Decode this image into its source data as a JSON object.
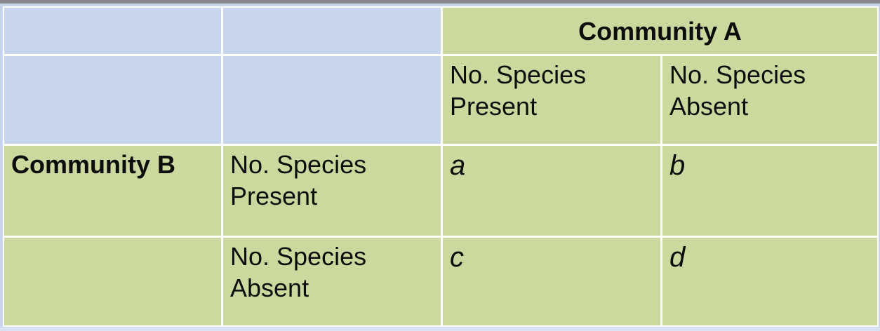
{
  "table": {
    "community_a_header": "Community A",
    "community_b_header": "Community B",
    "column_headers": {
      "present": "No. Species Present",
      "absent": "No. Species Absent"
    },
    "row_headers": {
      "present": "No. Species Present",
      "absent": "No. Species Absent"
    },
    "cells": {
      "a": "a",
      "b": "b",
      "c": "c",
      "d": "d"
    }
  },
  "colors": {
    "cell_green": "#cbd89e",
    "cell_blue": "#c8d5ed",
    "border_white": "#ffffff",
    "top_bar_gray": "#87868b",
    "bottom_strip_blue": "#d7e1f3",
    "text": "#0d0d0d"
  }
}
